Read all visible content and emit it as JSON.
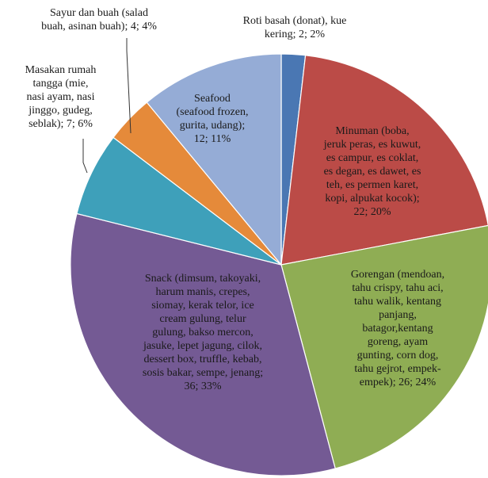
{
  "chart_data": {
    "type": "pie",
    "slices": [
      {
        "label": "Roti basah (donat), kue kering",
        "value": 2,
        "percent": "2%",
        "text": "Roti basah (donat), kue\nkering; 2; 2%",
        "color": "#4a77b3"
      },
      {
        "label": "Minuman (boba, jeruk peras, es kuwut, es campur, es coklat, es degan, es dawet, es teh, es permen karet, kopi, alpukat kocok)",
        "value": 22,
        "percent": "20%",
        "text": "Minuman (boba,\njeruk peras, es kuwut,\nes campur, es coklat,\nes degan, es dawet, es\nteh, es permen karet,\nkopi, alpukat kocok);\n22; 20%",
        "color": "#bb4b47"
      },
      {
        "label": "Gorengan (mendoan, tahu crispy, tahu aci, tahu walik, kentang panjang, batagor,kentang goreng, ayam gunting, corn dog, tahu gejrot, empek-empek)",
        "value": 26,
        "percent": "24%",
        "text": "Gorengan (mendoan,\ntahu crispy, tahu aci,\ntahu walik, kentang\npanjang,\nbatagor,kentang\ngoreng, ayam\ngunting, corn dog,\ntahu gejrot, empek-\nempek); 26; 24%",
        "color": "#8fad54"
      },
      {
        "label": "Snack (dimsum, takoyaki, harum manis, crepes, siomay, kerak telor, ice cream gulung, telur gulung, bakso mercon, jasuke, lepet jagung, cilok, dessert box, truffle, kebab, sosis bakar, sempe, jenang)",
        "value": 36,
        "percent": "33%",
        "text": "Snack (dimsum,  takoyaki,\nharum manis, crepes,\nsiomay, kerak telor, ice\ncream gulung, telur\ngulung, bakso mercon,\njasuke, lepet jagung, cilok,\ndessert box, truffle, kebab,\nsosis bakar, sempe, jenang;\n36; 33%",
        "color": "#745a94"
      },
      {
        "label": "Masakan rumah tangga (mie, nasi ayam, nasi jinggo, gudeg, seblak)",
        "value": 7,
        "percent": "6%",
        "text": "Masakan rumah\ntangga (mie,\nnasi ayam, nasi\njinggo,  gudeg,\nseblak); 7; 6%",
        "color": "#3ea0ba"
      },
      {
        "label": "Sayur dan buah (salad buah, asinan buah)",
        "value": 4,
        "percent": "4%",
        "text": "Sayur dan buah (salad\nbuah, asinan buah); 4; 4%",
        "color": "#e58a3a"
      },
      {
        "label": "Seafood (seafood frozen, gurita, udang)",
        "value": 12,
        "percent": "11%",
        "text": "Seafood\n(seafood frozen,\ngurita, udang);\n12; 11%",
        "color": "#95acd6"
      }
    ]
  }
}
